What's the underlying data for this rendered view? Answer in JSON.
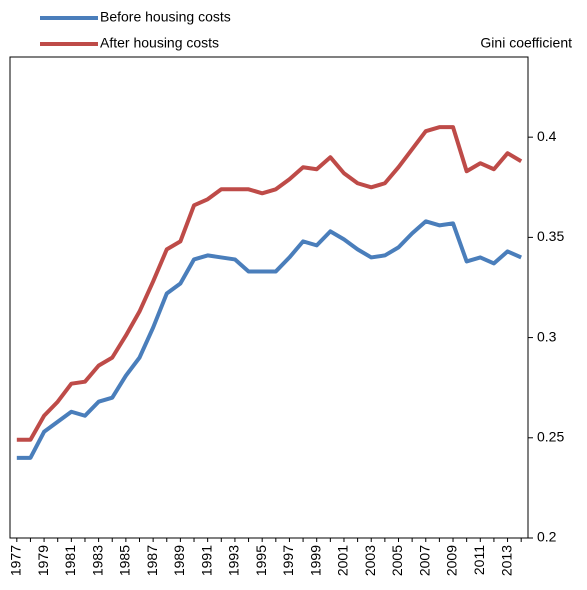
{
  "chart_data": {
    "type": "line",
    "y_label": "Gini coefficient",
    "categories": [
      "1977",
      null,
      "1979",
      null,
      "1981",
      null,
      "1983",
      null,
      "1985",
      null,
      "1987",
      null,
      "1989",
      null,
      "1991",
      null,
      "1993",
      null,
      "1995",
      null,
      "1997",
      null,
      "1999",
      null,
      "2001",
      null,
      "2003",
      null,
      "2005",
      null,
      "2007",
      null,
      "2009",
      null,
      "2011",
      null,
      "2013",
      null
    ],
    "series": [
      {
        "name": "Before housing costs",
        "color": "#4a7ebb",
        "values": [
          0.24,
          0.24,
          0.253,
          0.258,
          0.263,
          0.261,
          0.268,
          0.27,
          0.281,
          0.29,
          0.305,
          0.322,
          0.327,
          0.339,
          0.341,
          0.34,
          0.339,
          0.333,
          0.333,
          0.333,
          0.34,
          0.348,
          0.346,
          0.353,
          0.349,
          0.344,
          0.34,
          0.341,
          0.345,
          0.352,
          0.358,
          0.356,
          0.357,
          0.338,
          0.34,
          0.337,
          0.343,
          0.34
        ]
      },
      {
        "name": "After housing costs",
        "color": "#be4b48",
        "values": [
          0.249,
          0.249,
          0.261,
          0.268,
          0.277,
          0.278,
          0.286,
          0.29,
          0.301,
          0.313,
          0.328,
          0.344,
          0.348,
          0.366,
          0.369,
          0.374,
          0.374,
          0.374,
          0.372,
          0.374,
          0.379,
          0.385,
          0.384,
          0.39,
          0.382,
          0.377,
          0.375,
          0.377,
          0.385,
          0.394,
          0.403,
          0.405,
          0.405,
          0.383,
          0.387,
          0.384,
          0.392,
          0.388
        ]
      }
    ],
    "ylim": [
      0.2,
      0.44
    ],
    "yticks": [
      0.2,
      0.25,
      0.3,
      0.35,
      0.4
    ],
    "y_axis_side": "right",
    "legend": "top-left"
  }
}
